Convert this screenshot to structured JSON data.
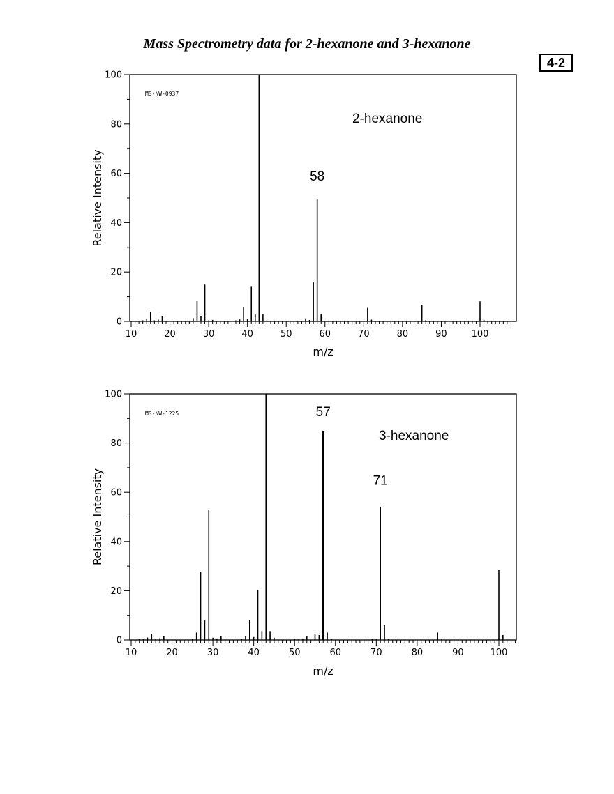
{
  "header": {
    "title": "Mass Spectrometry data for 2-hexanone and 3-hexanone",
    "badge": "4-2"
  },
  "chart_data": [
    {
      "type": "bar",
      "title": "",
      "compound_label": "2-hexanone",
      "id_label": "MS-NW-0937",
      "xlabel": "m/z",
      "ylabel": "Relative Intensity",
      "xlim": [
        10,
        108
      ],
      "ylim": [
        0,
        100
      ],
      "xticks": [
        10,
        20,
        30,
        40,
        50,
        60,
        70,
        80,
        90,
        100
      ],
      "yticks": [
        0,
        20,
        40,
        60,
        80,
        100
      ],
      "annotations": [
        {
          "text": "58",
          "x": 58,
          "y": 57
        }
      ],
      "series": [
        {
          "points": [
            [
              12,
              0.3
            ],
            [
              13,
              0.4
            ],
            [
              14,
              0.9
            ],
            [
              15,
              3.8
            ],
            [
              16,
              0.4
            ],
            [
              17,
              0.7
            ],
            [
              18,
              2.2
            ],
            [
              25,
              0.3
            ],
            [
              26,
              1.3
            ],
            [
              27,
              8.2
            ],
            [
              28,
              2.0
            ],
            [
              29,
              14.9
            ],
            [
              30,
              0.4
            ],
            [
              31,
              0.6
            ],
            [
              32,
              0.3
            ],
            [
              37,
              0.4
            ],
            [
              38,
              0.8
            ],
            [
              39,
              5.9
            ],
            [
              40,
              0.9
            ],
            [
              41,
              14.3
            ],
            [
              42,
              3.1
            ],
            [
              43,
              100
            ],
            [
              44,
              2.8
            ],
            [
              45,
              0.4
            ],
            [
              50,
              0.3
            ],
            [
              53,
              0.3
            ],
            [
              55,
              1.2
            ],
            [
              56,
              0.6
            ],
            [
              57,
              15.8
            ],
            [
              58,
              49.7
            ],
            [
              59,
              3.1
            ],
            [
              60,
              0.3
            ],
            [
              67,
              0.3
            ],
            [
              69,
              0.3
            ],
            [
              71,
              5.5
            ],
            [
              72,
              0.7
            ],
            [
              82,
              0.3
            ],
            [
              85,
              6.7
            ],
            [
              86,
              0.5
            ],
            [
              100,
              8.1
            ],
            [
              101,
              0.6
            ]
          ]
        }
      ]
    },
    {
      "type": "bar",
      "title": "",
      "compound_label": "3-hexanone",
      "id_label": "MS-NW-1225",
      "xlabel": "m/z",
      "ylabel": "Relative Intensity",
      "xlim": [
        10,
        104
      ],
      "ylim": [
        0,
        100
      ],
      "xticks": [
        10,
        20,
        30,
        40,
        50,
        60,
        70,
        80,
        90,
        100
      ],
      "yticks": [
        0,
        20,
        40,
        60,
        80,
        100
      ],
      "annotations": [
        {
          "text": "57",
          "x": 57,
          "y": 91
        },
        {
          "text": "71",
          "x": 71,
          "y": 63
        }
      ],
      "series": [
        {
          "points": [
            [
              12,
              0.3
            ],
            [
              13,
              0.5
            ],
            [
              14,
              1.0
            ],
            [
              15,
              2.5
            ],
            [
              16,
              0.3
            ],
            [
              17,
              0.7
            ],
            [
              18,
              1.7
            ],
            [
              25,
              0.4
            ],
            [
              26,
              3.0
            ],
            [
              27,
              27.6
            ],
            [
              28,
              7.9
            ],
            [
              29,
              52.9
            ],
            [
              30,
              0.9
            ],
            [
              31,
              0.6
            ],
            [
              32,
              1.5
            ],
            [
              37,
              0.5
            ],
            [
              38,
              1.5
            ],
            [
              39,
              8.0
            ],
            [
              40,
              1.2
            ],
            [
              41,
              20.3
            ],
            [
              42,
              3.6
            ],
            [
              43,
              100
            ],
            [
              44,
              3.6
            ],
            [
              45,
              0.9
            ],
            [
              50,
              0.4
            ],
            [
              51,
              0.5
            ],
            [
              52,
              0.6
            ],
            [
              53,
              1.4
            ],
            [
              55,
              2.5
            ],
            [
              56,
              2.0
            ],
            [
              57,
              85
            ],
            [
              58,
              3.0
            ],
            [
              59,
              0.3
            ],
            [
              69,
              0.4
            ],
            [
              70,
              0.5
            ],
            [
              71,
              54
            ],
            [
              72,
              6.0
            ],
            [
              73,
              0.4
            ],
            [
              85,
              3.0
            ],
            [
              86,
              0.5
            ],
            [
              100,
              28.6
            ],
            [
              101,
              2.0
            ]
          ]
        }
      ]
    }
  ]
}
